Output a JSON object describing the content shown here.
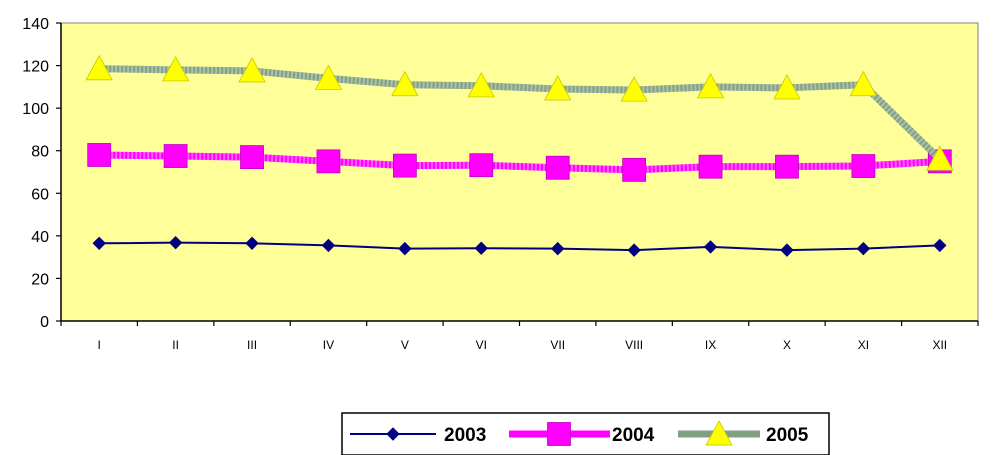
{
  "chart_data": {
    "type": "line",
    "categories": [
      "I",
      "II",
      "III",
      "IV",
      "V",
      "VI",
      "VII",
      "VIII",
      "IX",
      "X",
      "XI",
      "XII"
    ],
    "ylim": [
      0,
      140
    ],
    "yticks": [
      0,
      20,
      40,
      60,
      80,
      100,
      120,
      140
    ],
    "grid": false,
    "legend_position": "bottom",
    "plot_background": "#ffff99",
    "series": [
      {
        "name": "2003",
        "color": "#000080",
        "marker": "diamond",
        "values": [
          36.5,
          36.8,
          36.5,
          35.5,
          34.0,
          34.2,
          34.0,
          33.3,
          34.8,
          33.3,
          34.0,
          35.5
        ]
      },
      {
        "name": "2004",
        "color": "#ff00ff",
        "marker": "square",
        "values": [
          78.0,
          77.5,
          77.0,
          75.0,
          73.0,
          73.2,
          72.0,
          71.0,
          72.5,
          72.5,
          72.8,
          75.0
        ]
      },
      {
        "name": "2005",
        "color": "#ffff00",
        "line_color": "#80a080",
        "marker": "triangle",
        "values": [
          118.5,
          118.0,
          117.5,
          114.0,
          111.0,
          110.5,
          109.0,
          108.5,
          110.0,
          109.5,
          111.0,
          76.0
        ]
      }
    ]
  }
}
